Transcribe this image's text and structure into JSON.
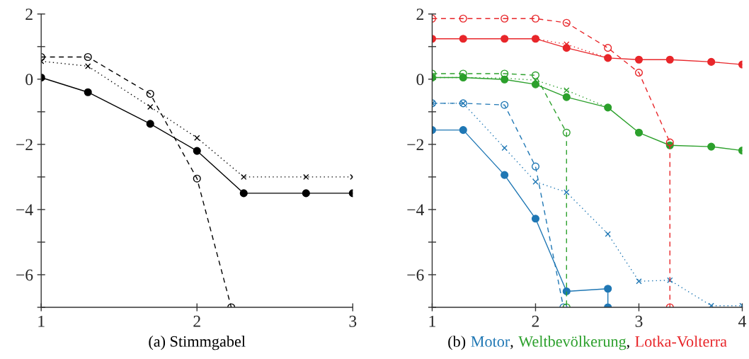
{
  "chart_data": [
    {
      "type": "line",
      "xlabel": "(a) Stimmgabel",
      "xlim": [
        1,
        3
      ],
      "xticks": [
        1,
        2,
        3
      ],
      "ylim": [
        -7,
        2
      ],
      "yticks": [
        {
          "value": -7,
          "label": null
        },
        {
          "value": -6,
          "label": "−6"
        },
        {
          "value": -5,
          "label": null
        },
        {
          "value": -4,
          "label": "−4"
        },
        {
          "value": -3,
          "label": null
        },
        {
          "value": -2,
          "label": "−2"
        },
        {
          "value": -1,
          "label": null
        },
        0,
        {
          "value": 1,
          "label": null
        },
        2
      ],
      "series": [
        {
          "color": "#000000",
          "marker": "circle",
          "line_style": "solid",
          "x": [
            1,
            1.3,
            1.7,
            2,
            2.3,
            2.7,
            3
          ],
          "values": [
            0.05,
            -0.4,
            -1.37,
            -2.2,
            -3.5,
            -3.5,
            -3.5
          ]
        },
        {
          "color": "#000000",
          "marker": "circle",
          "line_style": "dashed",
          "x": [
            1,
            1.3,
            1.7,
            2,
            2.22
          ],
          "values": [
            0.68,
            0.68,
            -0.45,
            -3.05,
            -7
          ]
        },
        {
          "color": "#000000",
          "marker": "cross",
          "line_style": "dotted",
          "x": [
            1,
            1.3,
            1.7,
            2,
            2.3,
            2.7,
            3
          ],
          "values": [
            0.55,
            0.4,
            -0.85,
            -1.8,
            -3.0,
            -3.0,
            -3.0
          ]
        }
      ]
    },
    {
      "type": "line",
      "xlabel": "(b)",
      "legend": "bottom",
      "annotations": [
        ",",
        ","
      ],
      "xlim": [
        1,
        4
      ],
      "xticks": [
        1,
        2,
        3,
        4
      ],
      "ylim": [
        -7,
        2
      ],
      "yticks": [
        {
          "value": -7,
          "label": null
        },
        {
          "value": -6,
          "label": "−6"
        },
        {
          "value": -5,
          "label": null
        },
        {
          "value": -4,
          "label": "−4"
        },
        {
          "value": -3,
          "label": null
        },
        {
          "value": -2,
          "label": "−2"
        },
        {
          "value": -1,
          "label": null
        },
        0,
        {
          "value": 1,
          "label": null
        },
        2
      ],
      "series": [
        {
          "name": "Motor",
          "color": "#1f77b4",
          "marker": "circle",
          "line_style": "solid",
          "x": [
            1,
            1.3,
            1.7,
            2,
            2.3,
            2.7,
            2.7
          ],
          "values": [
            -1.56,
            -1.56,
            -2.94,
            -4.28,
            -6.51,
            -6.43,
            -7
          ]
        },
        {
          "color": "#1f77b4",
          "marker": "circle",
          "line_style": "dashed",
          "x": [
            1,
            1.3,
            1.7,
            2,
            2.27
          ],
          "values": [
            -0.74,
            -0.74,
            -0.79,
            -2.68,
            -7
          ]
        },
        {
          "color": "#1f77b4",
          "marker": "cross",
          "line_style": "dotted",
          "x": [
            1,
            1.3,
            1.7,
            2,
            2.3,
            2.7,
            3,
            3.3,
            3.7,
            4
          ],
          "values": [
            -0.74,
            -0.74,
            -2.11,
            -3.15,
            -3.47,
            -4.75,
            -6.2,
            -6.17,
            -6.95,
            -6.95
          ]
        },
        {
          "name": "Weltbevölkerung",
          "color": "#2ca02c",
          "marker": "circle",
          "line_style": "solid",
          "x": [
            1,
            1.3,
            1.7,
            2,
            2.3,
            2.7,
            3,
            3.3,
            3.7,
            4
          ],
          "values": [
            0.05,
            0.05,
            -0.01,
            -0.16,
            -0.55,
            -0.87,
            -1.64,
            -2.03,
            -2.07,
            -2.19
          ]
        },
        {
          "color": "#2ca02c",
          "marker": "circle",
          "line_style": "dashed",
          "x": [
            1,
            1.3,
            1.7,
            2,
            2.3,
            2.3
          ],
          "values": [
            0.17,
            0.17,
            0.17,
            0.12,
            -1.64,
            -7
          ]
        },
        {
          "color": "#2ca02c",
          "marker": "cross",
          "line_style": "dotted",
          "x": [
            1,
            1.3,
            1.7,
            2,
            2.3,
            2.7
          ],
          "values": [
            0.05,
            0.05,
            0.03,
            -0.03,
            -0.34,
            -0.87
          ]
        },
        {
          "name": "Lotka-Volterra",
          "color": "#e8262a",
          "marker": "circle",
          "line_style": "solid",
          "x": [
            1,
            1.3,
            1.7,
            2,
            2.3,
            2.7,
            3,
            3.3,
            3.7,
            4
          ],
          "values": [
            1.24,
            1.24,
            1.24,
            1.24,
            0.96,
            0.65,
            0.6,
            0.6,
            0.53,
            0.45
          ]
        },
        {
          "color": "#e8262a",
          "marker": "circle",
          "line_style": "dashed",
          "x": [
            1,
            1.3,
            1.7,
            2,
            2.3,
            2.7,
            3,
            3.3,
            3.3
          ],
          "values": [
            1.86,
            1.86,
            1.86,
            1.86,
            1.73,
            0.96,
            0.2,
            -1.94,
            -7
          ]
        },
        {
          "color": "#e8262a",
          "marker": "cross",
          "line_style": "dotted",
          "x": [
            2,
            2.3,
            2.7
          ],
          "values": [
            1.24,
            1.07,
            0.65
          ]
        }
      ]
    }
  ]
}
